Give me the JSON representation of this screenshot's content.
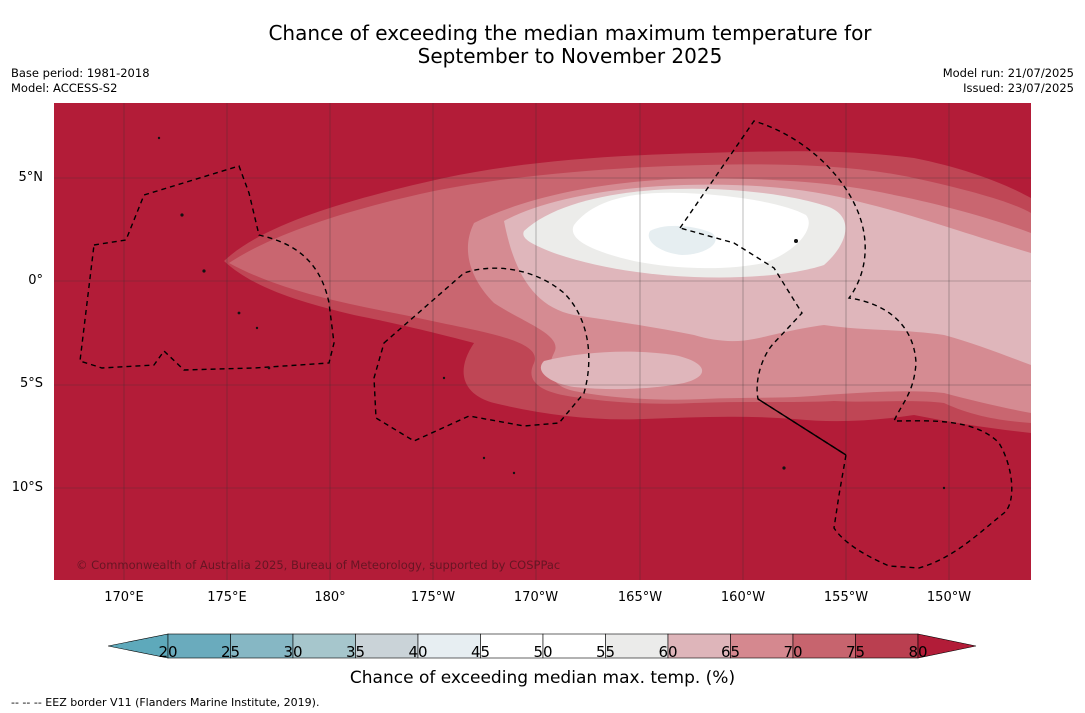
{
  "title_line1": "Chance of exceeding the median maximum temperature for",
  "title_line2": "September to November 2025",
  "base_period": "Base period: 1981-2018",
  "model": "Model: ACCESS-S2",
  "model_run": "Model run: 21/07/2025",
  "issued": "Issued: 23/07/2025",
  "copyright": "© Commonwealth of Australia 2025, Bureau of Meteorology, supported by COSPPac",
  "lat_labels": [
    "5°N",
    "0°",
    "5°S",
    "10°S"
  ],
  "lon_labels": [
    "170°E",
    "175°E",
    "180°",
    "175°W",
    "170°W",
    "165°W",
    "160°W",
    "155°W",
    "150°W"
  ],
  "colorbar": {
    "ticks": [
      "20",
      "25",
      "30",
      "35",
      "40",
      "45",
      "50",
      "55",
      "60",
      "65",
      "70",
      "75",
      "80"
    ],
    "colors": [
      "#5ea9bb",
      "#6aabbd",
      "#86b7c4",
      "#a6c6cc",
      "#cad3d8",
      "#e7eef2",
      "#ffffff",
      "#ffffff",
      "#ebebea",
      "#deb5ba",
      "#d5888f",
      "#c7646e",
      "#ba3f50",
      "#b21c38"
    ],
    "label": "Chance of exceeding median max. temp. (%)"
  },
  "legend_note": "--  --  -- EEZ border V11 (Flanders Marine Institute, 2019).",
  "palette": {
    "c80": "#b31c38",
    "c75": "#bf4655",
    "c70": "#c96670",
    "c65": "#d58b92",
    "c60": "#dfb6bb",
    "c55": "#ececea",
    "c50": "#ffffff",
    "c40": "#e6eef1"
  }
}
